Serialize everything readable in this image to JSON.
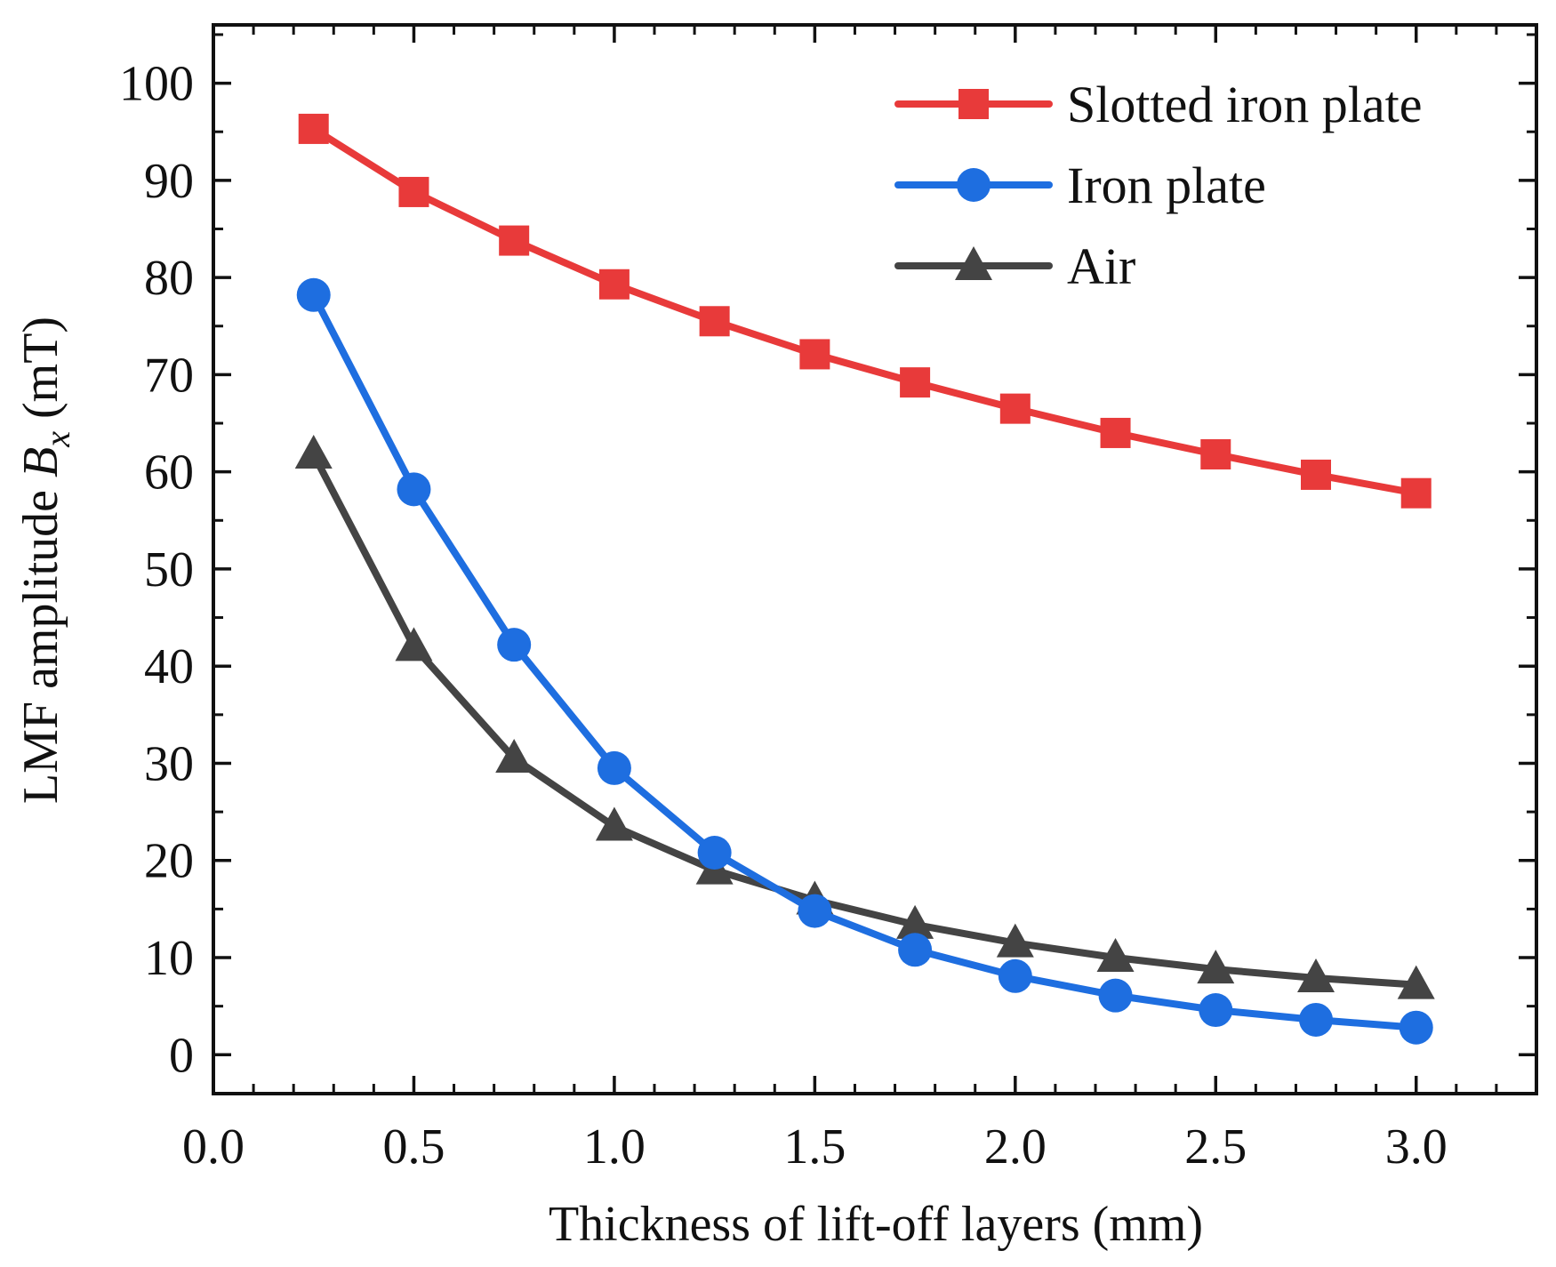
{
  "chart_data": {
    "type": "line",
    "title": "",
    "xlabel": "Thickness of lift-off layers (mm)",
    "ylabel": {
      "prefix": "LMF amplitude ",
      "symbol": "B",
      "subscript": "x",
      "suffix": " (mT)"
    },
    "xlim": [
      0.0,
      3.3
    ],
    "ylim": [
      -4,
      106
    ],
    "x_ticks": [
      0.0,
      0.5,
      1.0,
      1.5,
      2.0,
      2.5,
      3.0
    ],
    "x_tick_labels": [
      "0.0",
      "0.5",
      "1.0",
      "1.5",
      "2.0",
      "2.5",
      "3.0"
    ],
    "y_ticks": [
      0,
      10,
      20,
      30,
      40,
      50,
      60,
      70,
      80,
      90,
      100
    ],
    "y_tick_labels": [
      "0",
      "10",
      "20",
      "30",
      "40",
      "50",
      "60",
      "70",
      "80",
      "90",
      "100"
    ],
    "x_minor_step": 0.1,
    "y_minor_step": 5,
    "grid": false,
    "legend_position": "top-right",
    "x": [
      0.25,
      0.5,
      0.75,
      1.0,
      1.25,
      1.5,
      1.75,
      2.0,
      2.25,
      2.5,
      2.75,
      3.0
    ],
    "series": [
      {
        "name": "Slotted iron plate",
        "marker": "square",
        "color": "#e83a3a",
        "values": [
          95.3,
          88.8,
          83.8,
          79.3,
          75.5,
          72.1,
          69.2,
          66.5,
          64.0,
          61.8,
          59.7,
          57.8
        ]
      },
      {
        "name": "Iron plate",
        "marker": "circle",
        "color": "#1e6ee0",
        "values": [
          78.2,
          58.2,
          42.2,
          29.5,
          20.8,
          14.8,
          10.8,
          8.1,
          6.1,
          4.6,
          3.6,
          2.8
        ]
      },
      {
        "name": "Air",
        "marker": "triangle",
        "color": "#444444",
        "values": [
          61.8,
          42.0,
          30.5,
          23.5,
          19.0,
          15.9,
          13.4,
          11.5,
          10.0,
          8.8,
          7.9,
          7.2
        ]
      }
    ]
  }
}
